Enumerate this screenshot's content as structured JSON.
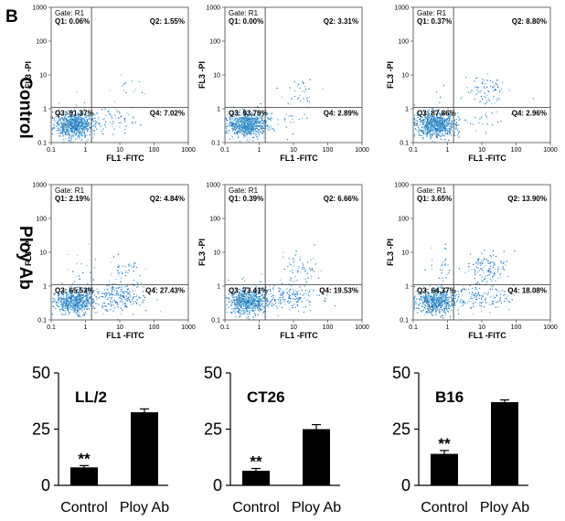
{
  "panel_label": "B",
  "row_labels": [
    "Control",
    "Ploy Ab"
  ],
  "chart_data": [
    {
      "type": "scatter",
      "subtype": "flow-cytometry-quadrant-grid",
      "x_axis_label": "FL1 -FITC",
      "y_axis_label": "FL3 -PI",
      "x_ticks": [
        "0.1",
        "1",
        "10",
        "100",
        "1000"
      ],
      "y_ticks": [
        "0.1",
        "1",
        "10",
        "100",
        "1000"
      ],
      "xlim": [
        0.1,
        1000
      ],
      "ylim": [
        0.1,
        1000
      ],
      "scale": "log",
      "gate_text": "Gate: R1",
      "panels": [
        {
          "row": "Control",
          "col": 0,
          "q1": "Q1: 0.06%",
          "q2": "Q2: 1.55%",
          "q3": "Q3: 91.37%",
          "q4": "Q4: 7.02%",
          "gate_x": 1.5,
          "gate_y": 1.1
        },
        {
          "row": "Control",
          "col": 1,
          "q1": "Q1: 0.00%",
          "q2": "Q2: 3.31%",
          "q3": "Q3: 93.79%",
          "q4": "Q4: 2.89%",
          "gate_x": 1.5,
          "gate_y": 1.1
        },
        {
          "row": "Control",
          "col": 2,
          "q1": "Q1: 0.37%",
          "q2": "Q2: 8.80%",
          "q3": "Q3: 87.86%",
          "q4": "Q4: 2.96%",
          "gate_x": 1.5,
          "gate_y": 1.1
        },
        {
          "row": "Ploy Ab",
          "col": 0,
          "q1": "Q1: 2.19%",
          "q2": "Q2: 4.84%",
          "q3": "Q3: 65.53%",
          "q4": "Q4: 27.43%",
          "gate_x": 1.5,
          "gate_y": 1.1
        },
        {
          "row": "Ploy Ab",
          "col": 1,
          "q1": "Q1: 0.39%",
          "q2": "Q2: 6.66%",
          "q3": "Q3: 73.41%",
          "q4": "Q4: 19.53%",
          "gate_x": 1.5,
          "gate_y": 1.1
        },
        {
          "row": "Ploy Ab",
          "col": 2,
          "q1": "Q1: 3.65%",
          "q2": "Q2: 13.90%",
          "q3": "Q3: 64.37%",
          "q4": "Q4: 18.08%",
          "gate_x": 1.5,
          "gate_y": 1.1
        }
      ]
    },
    {
      "type": "bar",
      "title": "LL/2",
      "categories": [
        "Control",
        "Ploy Ab"
      ],
      "values": [
        8,
        32.5
      ],
      "errors": [
        0.8,
        1.5
      ],
      "significance": [
        "**",
        ""
      ],
      "ylim": [
        0,
        50
      ],
      "yticks": [
        "0",
        "25",
        "50"
      ]
    },
    {
      "type": "bar",
      "title": "CT26",
      "categories": [
        "Control",
        "Ploy Ab"
      ],
      "values": [
        6.5,
        25
      ],
      "errors": [
        1.0,
        2.0
      ],
      "significance": [
        "**",
        ""
      ],
      "ylim": [
        0,
        50
      ],
      "yticks": [
        "0",
        "25",
        "50"
      ]
    },
    {
      "type": "bar",
      "title": "B16",
      "categories": [
        "Control",
        "Ploy Ab"
      ],
      "values": [
        14,
        37
      ],
      "errors": [
        1.5,
        1.0
      ],
      "significance": [
        "**",
        ""
      ],
      "ylim": [
        0,
        50
      ],
      "yticks": [
        "0",
        "25",
        "50"
      ]
    }
  ]
}
